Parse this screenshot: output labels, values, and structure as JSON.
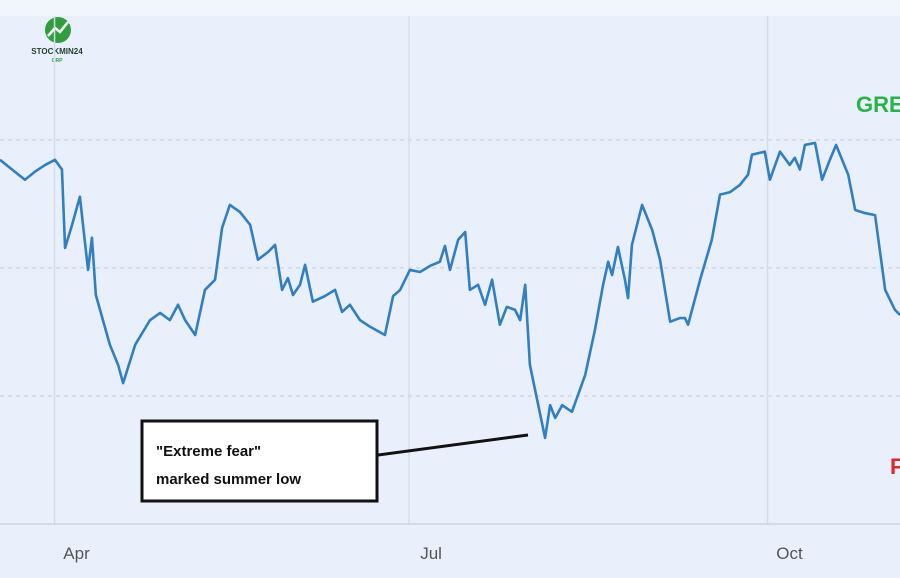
{
  "logo": {
    "name": "STOCKMIN24",
    "sub": "GRP"
  },
  "chart_data": {
    "type": "line",
    "x": [
      76.0,
      78.6,
      82.4,
      85.0,
      87.6,
      90.1,
      91.9,
      92.7,
      94.5,
      96.5,
      98.6,
      99.6,
      100.6,
      104.2,
      106.3,
      107.6,
      110.7,
      114.5,
      117.1,
      119.6,
      121.7,
      123.5,
      126.1,
      128.6,
      131.2,
      133.0,
      135.0,
      137.6,
      140.2,
      142.2,
      144.8,
      146.6,
      148.4,
      149.9,
      151.2,
      153.0,
      154.3,
      156.3,
      159.4,
      162.0,
      163.8,
      165.8,
      168.4,
      171.0,
      174.8,
      176.9,
      178.7,
      181.2,
      183.8,
      186.4,
      188.9,
      190.2,
      191.5,
      193.6,
      195.4,
      196.6,
      198.7,
      200.5,
      202.3,
      204.3,
      206.1,
      208.2,
      209.5,
      210.8,
      212.0,
      215.9,
      217.2,
      218.5,
      220.3,
      222.8,
      226.2,
      228.7,
      230.8,
      232.1,
      233.1,
      234.6,
      236.4,
      237.2,
      238.2,
      240.8,
      243.4,
      245.4,
      248.0,
      250.5,
      251.8,
      252.6,
      255.7,
      258.7,
      260.8,
      263.4,
      265.9,
      268.0,
      269.0,
      272.3,
      273.6,
      276.2,
      278.7,
      280.0,
      281.3,
      282.6,
      285.2,
      287.0,
      289.0,
      290.6,
      293.7,
      295.5,
      298.0,
      300.6,
      303.2,
      305.7,
      307.0
    ],
    "series": [
      {
        "color": "#2f7fc1",
        "values": [
          71.1,
          69.5,
          67.2,
          68.8,
          70.1,
          71.1,
          69.2,
          53.9,
          58.4,
          63.9,
          49.6,
          55.9,
          44.7,
          35.0,
          31.1,
          27.5,
          35.0,
          39.8,
          41.2,
          39.8,
          42.8,
          39.8,
          36.9,
          45.7,
          47.7,
          57.8,
          62.3,
          60.9,
          58.4,
          51.6,
          53.1,
          54.5,
          45.7,
          48.0,
          44.7,
          46.7,
          50.6,
          43.4,
          44.5,
          45.7,
          41.4,
          42.8,
          39.8,
          38.5,
          36.9,
          44.5,
          45.7,
          49.6,
          49.2,
          50.4,
          51.2,
          54.3,
          49.6,
          55.5,
          57.0,
          45.7,
          46.7,
          42.8,
          47.7,
          38.9,
          42.4,
          41.8,
          39.8,
          46.7,
          31.1,
          16.8,
          23.2,
          20.7,
          23.2,
          21.9,
          29.1,
          37.9,
          46.7,
          51.2,
          48.6,
          54.1,
          47.7,
          44.1,
          54.5,
          62.3,
          57.4,
          51.6,
          39.5,
          40.2,
          40.2,
          38.9,
          47.7,
          55.5,
          64.3,
          64.8,
          66.2,
          68.2,
          72.1,
          72.7,
          67.2,
          72.7,
          70.1,
          71.5,
          69.2,
          74.0,
          74.4,
          67.2,
          71.1,
          74.0,
          68.2,
          61.3,
          60.7,
          60.3,
          45.7,
          41.8,
          40.8
        ]
      }
    ],
    "xlim": [
      76,
      307
    ],
    "xticks": [
      {
        "value": 90,
        "label": "Apr"
      },
      {
        "value": 181,
        "label": "Jul"
      },
      {
        "value": 273,
        "label": "Oct"
      }
    ],
    "ylim": [
      0,
      102.3
    ],
    "ygrid": [
      25,
      50,
      75
    ],
    "annotation": [
      "\"Extreme fear\"",
      "marked summer low"
    ],
    "zone_labels": [
      {
        "text": "GRE",
        "color": "#27b24a"
      },
      {
        "text": "F",
        "color": "#e0242b"
      }
    ]
  }
}
